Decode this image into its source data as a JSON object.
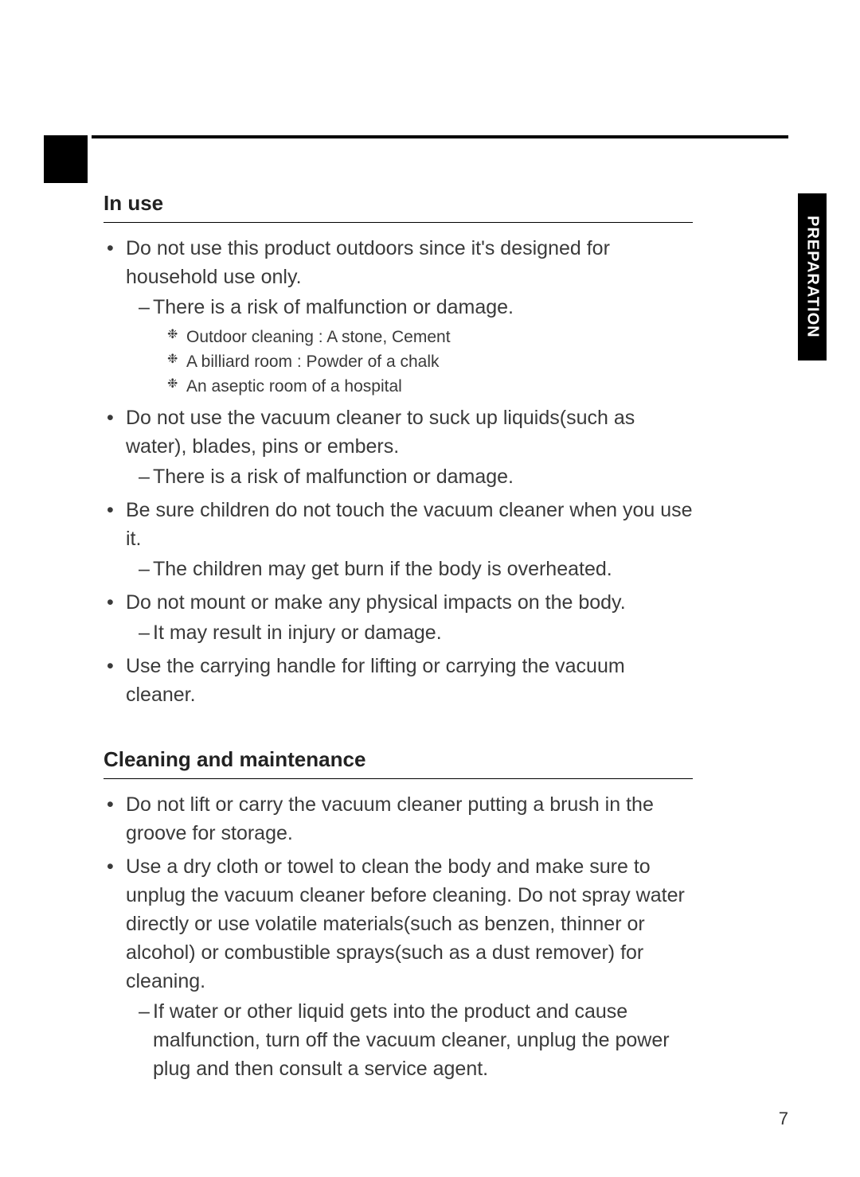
{
  "page": {
    "side_tab": "PREPARATION",
    "page_number": "7"
  },
  "sections": {
    "in_use": {
      "title": "In use",
      "items": [
        {
          "text": "Do not use this product outdoors since it's designed for household use only.",
          "dashes": [
            {
              "text": "There is a risk of malfunction or damage.",
              "asterisks": [
                "Outdoor cleaning : A stone, Cement",
                "A billiard room : Powder of a chalk",
                "An aseptic room of a hospital"
              ]
            }
          ]
        },
        {
          "text": "Do not use the vacuum cleaner to suck up liquids(such as water), blades, pins or embers.",
          "dashes": [
            {
              "text": "There is a risk of malfunction or damage."
            }
          ]
        },
        {
          "text": "Be sure children do not touch the vacuum cleaner when you use it.",
          "dashes": [
            {
              "text": "The children may get burn if the body is overheated."
            }
          ]
        },
        {
          "text": "Do not mount or make any physical impacts on the body.",
          "dashes": [
            {
              "text": "It may result in injury or damage."
            }
          ]
        },
        {
          "text": "Use the carrying handle for lifting or carrying the vacuum cleaner."
        }
      ]
    },
    "cleaning": {
      "title": "Cleaning and maintenance",
      "items": [
        {
          "text": "Do not lift or carry the vacuum cleaner putting a brush in the groove for storage."
        },
        {
          "text": "Use a dry cloth or towel to clean the body and make sure to unplug the vacuum cleaner before cleaning. Do not spray water directly or use volatile materials(such as benzen, thinner or alcohol) or combustible sprays(such as a dust remover) for cleaning.",
          "dashes": [
            {
              "text": "If water or other liquid gets into the product and cause malfunction, turn off the vacuum cleaner, unplug the power plug and then consult a service agent."
            }
          ]
        }
      ]
    }
  }
}
